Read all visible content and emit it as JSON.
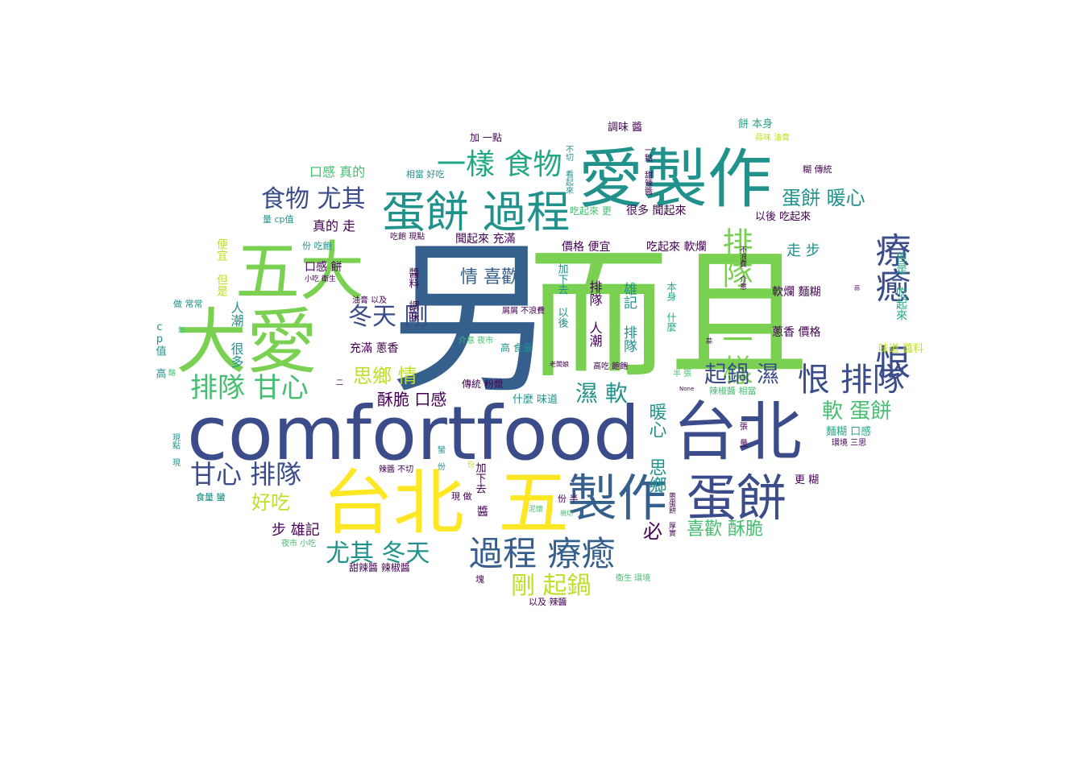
{
  "palette": {
    "dark_purple": "#440154",
    "indigo": "#3b4c8a",
    "blue": "#355f8d",
    "teal_blue": "#2a788e",
    "teal": "#21918c",
    "green_teal": "#22a884",
    "green": "#44bf70",
    "light_green": "#7ad151",
    "yellow_green": "#bddf26",
    "yellow": "#fde725"
  },
  "words": [
    {
      "text": "而且",
      "color": "light_green",
      "vertical": false
    },
    {
      "text": "另",
      "color": "blue",
      "vertical": false
    },
    {
      "text": "comfortfood",
      "color": "indigo",
      "vertical": false
    },
    {
      "text": "台北",
      "color": "indigo",
      "vertical": false
    },
    {
      "text": "台北",
      "color": "yellow",
      "vertical": false
    },
    {
      "text": "五",
      "color": "yellow",
      "vertical": false
    },
    {
      "text": "大愛",
      "color": "light_green",
      "vertical": false
    },
    {
      "text": "五大",
      "color": "light_green",
      "vertical": false
    },
    {
      "text": "愛製作",
      "color": "teal",
      "vertical": false
    },
    {
      "text": "製作",
      "color": "blue",
      "vertical": false
    },
    {
      "text": "蛋餅",
      "color": "indigo",
      "vertical": false
    },
    {
      "text": "蛋餅 過程",
      "color": "teal",
      "vertical": false
    },
    {
      "text": "過程 療癒",
      "color": "blue",
      "vertical": false
    },
    {
      "text": "療癒 恨",
      "color": "indigo",
      "vertical": true
    },
    {
      "text": "恨 排隊",
      "color": "indigo",
      "vertical": false
    },
    {
      "text": "排隊 一樣",
      "color": "light_green",
      "vertical": true
    },
    {
      "text": "一樣 食物",
      "color": "green_teal",
      "vertical": false
    },
    {
      "text": "食物 尤其",
      "color": "indigo",
      "vertical": false
    },
    {
      "text": "排隊 甘心",
      "color": "green",
      "vertical": false
    },
    {
      "text": "甘心 排隊",
      "color": "indigo",
      "vertical": false
    },
    {
      "text": "尤其 冬天",
      "color": "teal",
      "vertical": false
    },
    {
      "text": "冬天 剛",
      "color": "indigo",
      "vertical": false
    },
    {
      "text": "剛 起鍋",
      "color": "yellow_green",
      "vertical": false
    },
    {
      "text": "起鍋 濕",
      "color": "indigo",
      "vertical": false
    },
    {
      "text": "濕 軟",
      "color": "teal",
      "vertical": false
    },
    {
      "text": "軟 蛋餅",
      "color": "green",
      "vertical": false
    },
    {
      "text": "蛋餅 暖心",
      "color": "teal",
      "vertical": false
    },
    {
      "text": "暖心 思鄉",
      "color": "teal",
      "vertical": true
    },
    {
      "text": "思鄉 情",
      "color": "yellow_green",
      "vertical": false
    },
    {
      "text": "情 喜歡",
      "color": "blue",
      "vertical": false
    },
    {
      "text": "喜歡 酥脆",
      "color": "green",
      "vertical": false
    },
    {
      "text": "酥脆 口感",
      "color": "dark_purple",
      "vertical": false
    },
    {
      "text": "好吃",
      "color": "yellow_green",
      "vertical": false
    },
    {
      "text": "必",
      "color": "dark_purple",
      "vertical": false
    },
    {
      "text": "步 雄記",
      "color": "dark_purple",
      "vertical": false
    },
    {
      "text": "口感 真的",
      "color": "green",
      "vertical": false
    },
    {
      "text": "真的 走",
      "color": "dark_purple",
      "vertical": false
    },
    {
      "text": "走 步",
      "color": "teal",
      "vertical": false
    },
    {
      "text": "雄記 排隊",
      "color": "teal",
      "vertical": true
    },
    {
      "text": "排隊 人潮",
      "color": "dark_purple",
      "vertical": true
    },
    {
      "text": "人潮 很多",
      "color": "teal",
      "vertical": true
    },
    {
      "text": "很多 聞起來",
      "color": "dark_purple",
      "vertical": false
    },
    {
      "text": "聞起來 充滿",
      "color": "dark_purple",
      "vertical": false
    },
    {
      "text": "充滿 蔥香",
      "color": "dark_purple",
      "vertical": false
    },
    {
      "text": "蔥香 價格",
      "color": "dark_purple",
      "vertical": false
    },
    {
      "text": "價格 便宜",
      "color": "dark_purple",
      "vertical": false
    },
    {
      "text": "便宜 但是",
      "color": "yellow_green",
      "vertical": true
    },
    {
      "text": "但是 吃起來",
      "color": "green_teal",
      "vertical": true
    },
    {
      "text": "吃起來 軟爛",
      "color": "dark_purple",
      "vertical": false
    },
    {
      "text": "軟爛 麵糊",
      "color": "dark_purple",
      "vertical": false
    },
    {
      "text": "麵糊 口感",
      "color": "green_teal",
      "vertical": false
    },
    {
      "text": "口感 餅",
      "color": "dark_purple",
      "vertical": false
    },
    {
      "text": "餅 本身",
      "color": "green_teal",
      "vertical": false
    },
    {
      "text": "本身 什麼",
      "color": "green_teal",
      "vertical": true
    },
    {
      "text": "什麼 味道",
      "color": "teal",
      "vertical": false
    },
    {
      "text": "味道 醬料",
      "color": "yellow_green",
      "vertical": false
    },
    {
      "text": "醬料 調味",
      "color": "dark_purple",
      "vertical": true
    },
    {
      "text": "調味 醬",
      "color": "dark_purple",
      "vertical": false
    },
    {
      "text": "高 食量",
      "color": "teal",
      "vertical": false
    },
    {
      "text": "食量 蠻",
      "color": "teal",
      "vertical": false
    },
    {
      "text": "蠻 份",
      "color": "teal",
      "vertical": true
    },
    {
      "text": "份 吃飽",
      "color": "teal",
      "vertical": false
    },
    {
      "text": "吃飽 現點",
      "color": "dark_purple",
      "vertical": false
    },
    {
      "text": "現點 現",
      "color": "teal",
      "vertical": true
    },
    {
      "text": "現 做",
      "color": "dark_purple",
      "vertical": false
    },
    {
      "text": "做 常常",
      "color": "teal",
      "vertical": false
    },
    {
      "text": "cp值 高",
      "color": "teal",
      "vertical": true
    },
    {
      "text": "量 cp值",
      "color": "teal",
      "vertical": false
    },
    {
      "text": "以後 吃起來",
      "color": "dark_purple",
      "vertical": false
    },
    {
      "text": "吃起來 更",
      "color": "green",
      "vertical": false
    },
    {
      "text": "更 糊",
      "color": "dark_purple",
      "vertical": false
    },
    {
      "text": "糊 傳統",
      "color": "dark_purple",
      "vertical": false
    },
    {
      "text": "傳統 粉漿",
      "color": "dark_purple",
      "vertical": false
    },
    {
      "text": "加下去 以後",
      "color": "teal",
      "vertical": true
    },
    {
      "text": "加下去",
      "color": "dark_purple",
      "vertical": true
    },
    {
      "text": "加 一點",
      "color": "dark_purple",
      "vertical": false
    },
    {
      "text": "一點 甜辣醬",
      "color": "dark_purple",
      "vertical": true
    },
    {
      "text": "甜辣醬 辣椒醬",
      "color": "dark_purple",
      "vertical": false
    },
    {
      "text": "辣椒醬 相當",
      "color": "green",
      "vertical": false
    },
    {
      "text": "相當 好吃",
      "color": "teal",
      "vertical": false
    },
    {
      "text": "以及 辣醬",
      "color": "dark_purple",
      "vertical": false
    },
    {
      "text": "辣醬 不切",
      "color": "dark_purple",
      "vertical": false
    },
    {
      "text": "不切 看起來",
      "color": "teal",
      "vertical": true
    },
    {
      "text": "油膏 以及",
      "color": "dark_purple",
      "vertical": false
    },
    {
      "text": "蒜味 油膏",
      "color": "yellow_green",
      "vertical": false
    },
    {
      "text": "小吃 衛生",
      "color": "dark_purple",
      "vertical": false
    },
    {
      "text": "衛生 環境",
      "color": "green",
      "vertical": false
    },
    {
      "text": "環境 三思",
      "color": "dark_purple",
      "vertical": false
    },
    {
      "text": "夜市 小吃",
      "color": "green",
      "vertical": false
    },
    {
      "text": "介意 夜市",
      "color": "green",
      "vertical": false
    },
    {
      "text": "不浪費 介意",
      "color": "dark_purple",
      "vertical": true
    },
    {
      "text": "屑屑 不浪費",
      "color": "dark_purple",
      "vertical": false
    },
    {
      "text": "高吃 飽飽",
      "color": "dark_purple",
      "vertical": false
    },
    {
      "text": "老闆娘",
      "color": "dark_purple",
      "vertical": false
    },
    {
      "text": "半 張",
      "color": "green",
      "vertical": false
    },
    {
      "text": "張 量",
      "color": "dark_purple",
      "vertical": true
    },
    {
      "text": "份 半",
      "color": "dark_purple",
      "vertical": false
    },
    {
      "text": "蔥蛋餅 厚實",
      "color": "dark_purple",
      "vertical": true
    },
    {
      "text": "泥懷",
      "color": "green",
      "vertical": false
    },
    {
      "text": "親切",
      "color": "green",
      "vertical": false
    },
    {
      "text": "塊",
      "color": "dark_purple",
      "vertical": false
    },
    {
      "text": "食量 蠻",
      "color": "teal",
      "vertical": false
    },
    {
      "text": "None",
      "color": "dark_purple",
      "vertical": false
    },
    {
      "text": "蒜",
      "color": "dark_purple",
      "vertical": false
    },
    {
      "text": "蒜",
      "color": "dark_purple",
      "vertical": false
    },
    {
      "text": "熱",
      "color": "green",
      "vertical": false
    },
    {
      "text": "二",
      "color": "dark_purple",
      "vertical": false
    },
    {
      "text": "酪",
      "color": "green",
      "vertical": false
    },
    {
      "text": "份",
      "color": "yellow_green",
      "vertical": false
    },
    {
      "text": "醬",
      "color": "dark_purple",
      "vertical": false
    }
  ]
}
